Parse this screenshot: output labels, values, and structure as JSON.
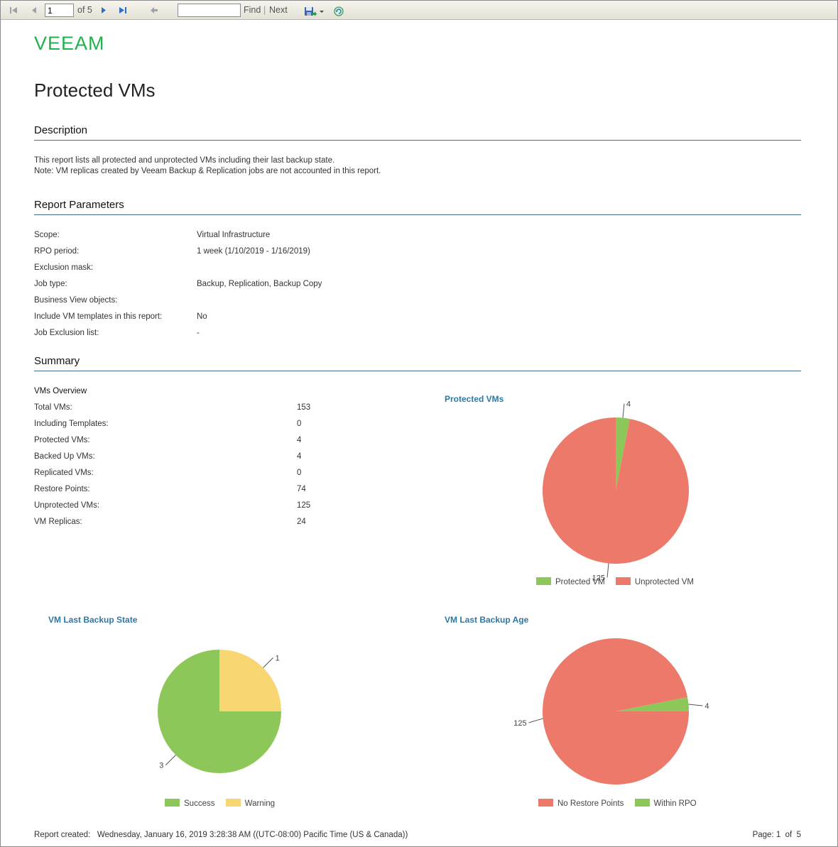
{
  "toolbar": {
    "page_value": "1",
    "page_of": "of 5",
    "find_label": "Find",
    "separator": "|",
    "next_label": "Next"
  },
  "logo": "VEEAM",
  "report": {
    "title": "Protected VMs",
    "description_heading": "Description",
    "description_lines": [
      "This report lists all protected and unprotected VMs including their last backup state.",
      "Note: VM replicas created by Veeam Backup & Replication jobs are not accounted in this report."
    ],
    "parameters_heading": "Report Parameters",
    "parameters": [
      {
        "label": "Scope:",
        "value": "Virtual Infrastructure"
      },
      {
        "label": "RPO period:",
        "value": "1 week (1/10/2019 - 1/16/2019)"
      },
      {
        "label": "Exclusion mask:",
        "value": ""
      },
      {
        "label": "Job type:",
        "value": "Backup, Replication, Backup Copy"
      },
      {
        "label": "Business View objects:",
        "value": ""
      },
      {
        "label": "Include VM templates in this report:",
        "value": "No"
      },
      {
        "label": "Job Exclusion list:",
        "value": "-"
      }
    ],
    "summary_heading": "Summary",
    "overview_title": "VMs Overview",
    "overview": [
      {
        "label": "Total VMs:",
        "value": "153"
      },
      {
        "label": "Including Templates:",
        "value": "0"
      },
      {
        "label": "Protected VMs:",
        "value": "4"
      },
      {
        "label": "Backed Up VMs:",
        "value": "4"
      },
      {
        "label": "Replicated VMs:",
        "value": "0"
      },
      {
        "label": "Restore Points:",
        "value": "74"
      },
      {
        "label": "Unprotected VMs:",
        "value": "125"
      },
      {
        "label": "VM Replicas:",
        "value": "24"
      }
    ]
  },
  "chart_data": [
    {
      "type": "pie",
      "title": "Protected VMs",
      "categories": [
        "Protected VM",
        "Unprotected VM"
      ],
      "values": [
        4,
        125
      ],
      "colors": [
        "#8dc759",
        "#ed796a"
      ],
      "legend_position": "bottom"
    },
    {
      "type": "pie",
      "title": "VM Last Backup State",
      "categories": [
        "Success",
        "Warning"
      ],
      "values": [
        3,
        1
      ],
      "colors": [
        "#8dc759",
        "#f8d772"
      ],
      "legend_position": "bottom"
    },
    {
      "type": "pie",
      "title": "VM Last Backup Age",
      "categories": [
        "No Restore Points",
        "Within RPO"
      ],
      "values": [
        125,
        4
      ],
      "colors": [
        "#ed796a",
        "#8dc759"
      ],
      "legend_position": "bottom"
    }
  ],
  "footer": {
    "created_label": "Report created:",
    "created_value": "Wednesday, January 16, 2019 3:28:38 AM ((UTC-08:00) Pacific Time (US & Canada))",
    "page_text": "Page: 1  of  5"
  }
}
